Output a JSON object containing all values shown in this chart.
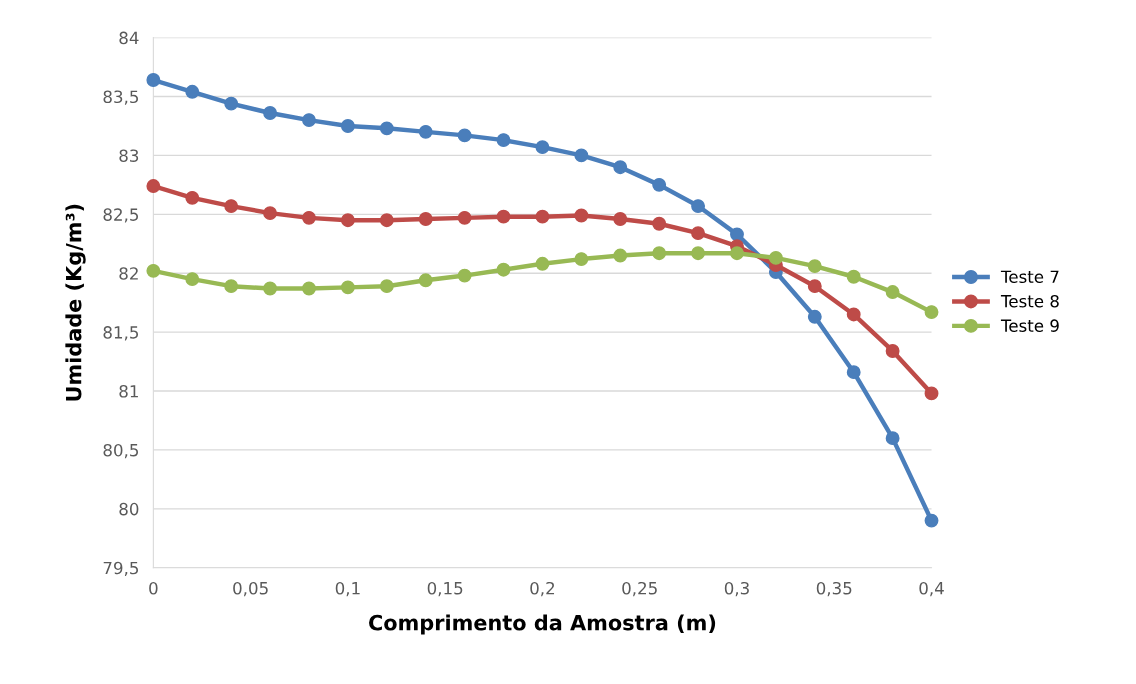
{
  "chart_data": {
    "type": "line",
    "xlabel": "Comprimento da Amostra (m)",
    "ylabel": "Umidade (Kg/m³)",
    "x": [
      0,
      0.02,
      0.04,
      0.06,
      0.08,
      0.1,
      0.12,
      0.14,
      0.16,
      0.18,
      0.2,
      0.22,
      0.24,
      0.26,
      0.28,
      0.3,
      0.32,
      0.34,
      0.36,
      0.38,
      0.4
    ],
    "series": [
      {
        "name": "Teste 7",
        "color": "#4a7ebb",
        "values": [
          83.64,
          83.54,
          83.44,
          83.36,
          83.3,
          83.25,
          83.23,
          83.2,
          83.17,
          83.13,
          83.07,
          83.0,
          82.9,
          82.75,
          82.57,
          82.33,
          82.01,
          81.63,
          81.16,
          80.6,
          79.9
        ]
      },
      {
        "name": "Teste 8",
        "color": "#be4b48",
        "values": [
          82.74,
          82.64,
          82.57,
          82.51,
          82.47,
          82.45,
          82.45,
          82.46,
          82.47,
          82.48,
          82.48,
          82.49,
          82.46,
          82.42,
          82.34,
          82.23,
          82.07,
          81.89,
          81.65,
          81.34,
          80.98
        ]
      },
      {
        "name": "Teste 9",
        "color": "#98b954",
        "values": [
          82.02,
          81.95,
          81.89,
          81.87,
          81.87,
          81.88,
          81.89,
          81.94,
          81.98,
          82.03,
          82.08,
          82.12,
          82.15,
          82.17,
          82.17,
          82.17,
          82.13,
          82.06,
          81.97,
          81.84,
          81.67
        ]
      }
    ],
    "xlim": [
      0,
      0.4
    ],
    "xticks": [
      {
        "value": 0,
        "label": "0"
      },
      {
        "value": 0.05,
        "label": "0,05"
      },
      {
        "value": 0.1,
        "label": "0,1"
      },
      {
        "value": 0.15,
        "label": "0,15"
      },
      {
        "value": 0.2,
        "label": "0,2"
      },
      {
        "value": 0.25,
        "label": "0,25"
      },
      {
        "value": 0.3,
        "label": "0,3"
      },
      {
        "value": 0.35,
        "label": "0,35"
      },
      {
        "value": 0.4,
        "label": "0,4"
      }
    ],
    "ylim": [
      79.5,
      84
    ],
    "yticks": [
      {
        "value": 79.5,
        "label": "79,5"
      },
      {
        "value": 80,
        "label": "80"
      },
      {
        "value": 80.5,
        "label": "80,5"
      },
      {
        "value": 81,
        "label": "81"
      },
      {
        "value": 81.5,
        "label": "81,5"
      },
      {
        "value": 82,
        "label": "82"
      },
      {
        "value": 82.5,
        "label": "82,5"
      },
      {
        "value": 83,
        "label": "83"
      },
      {
        "value": 83.5,
        "label": "83,5"
      },
      {
        "value": 84,
        "label": "84"
      }
    ],
    "grid": "y",
    "legend": "right",
    "marker": "circle",
    "line_style": "solid"
  }
}
